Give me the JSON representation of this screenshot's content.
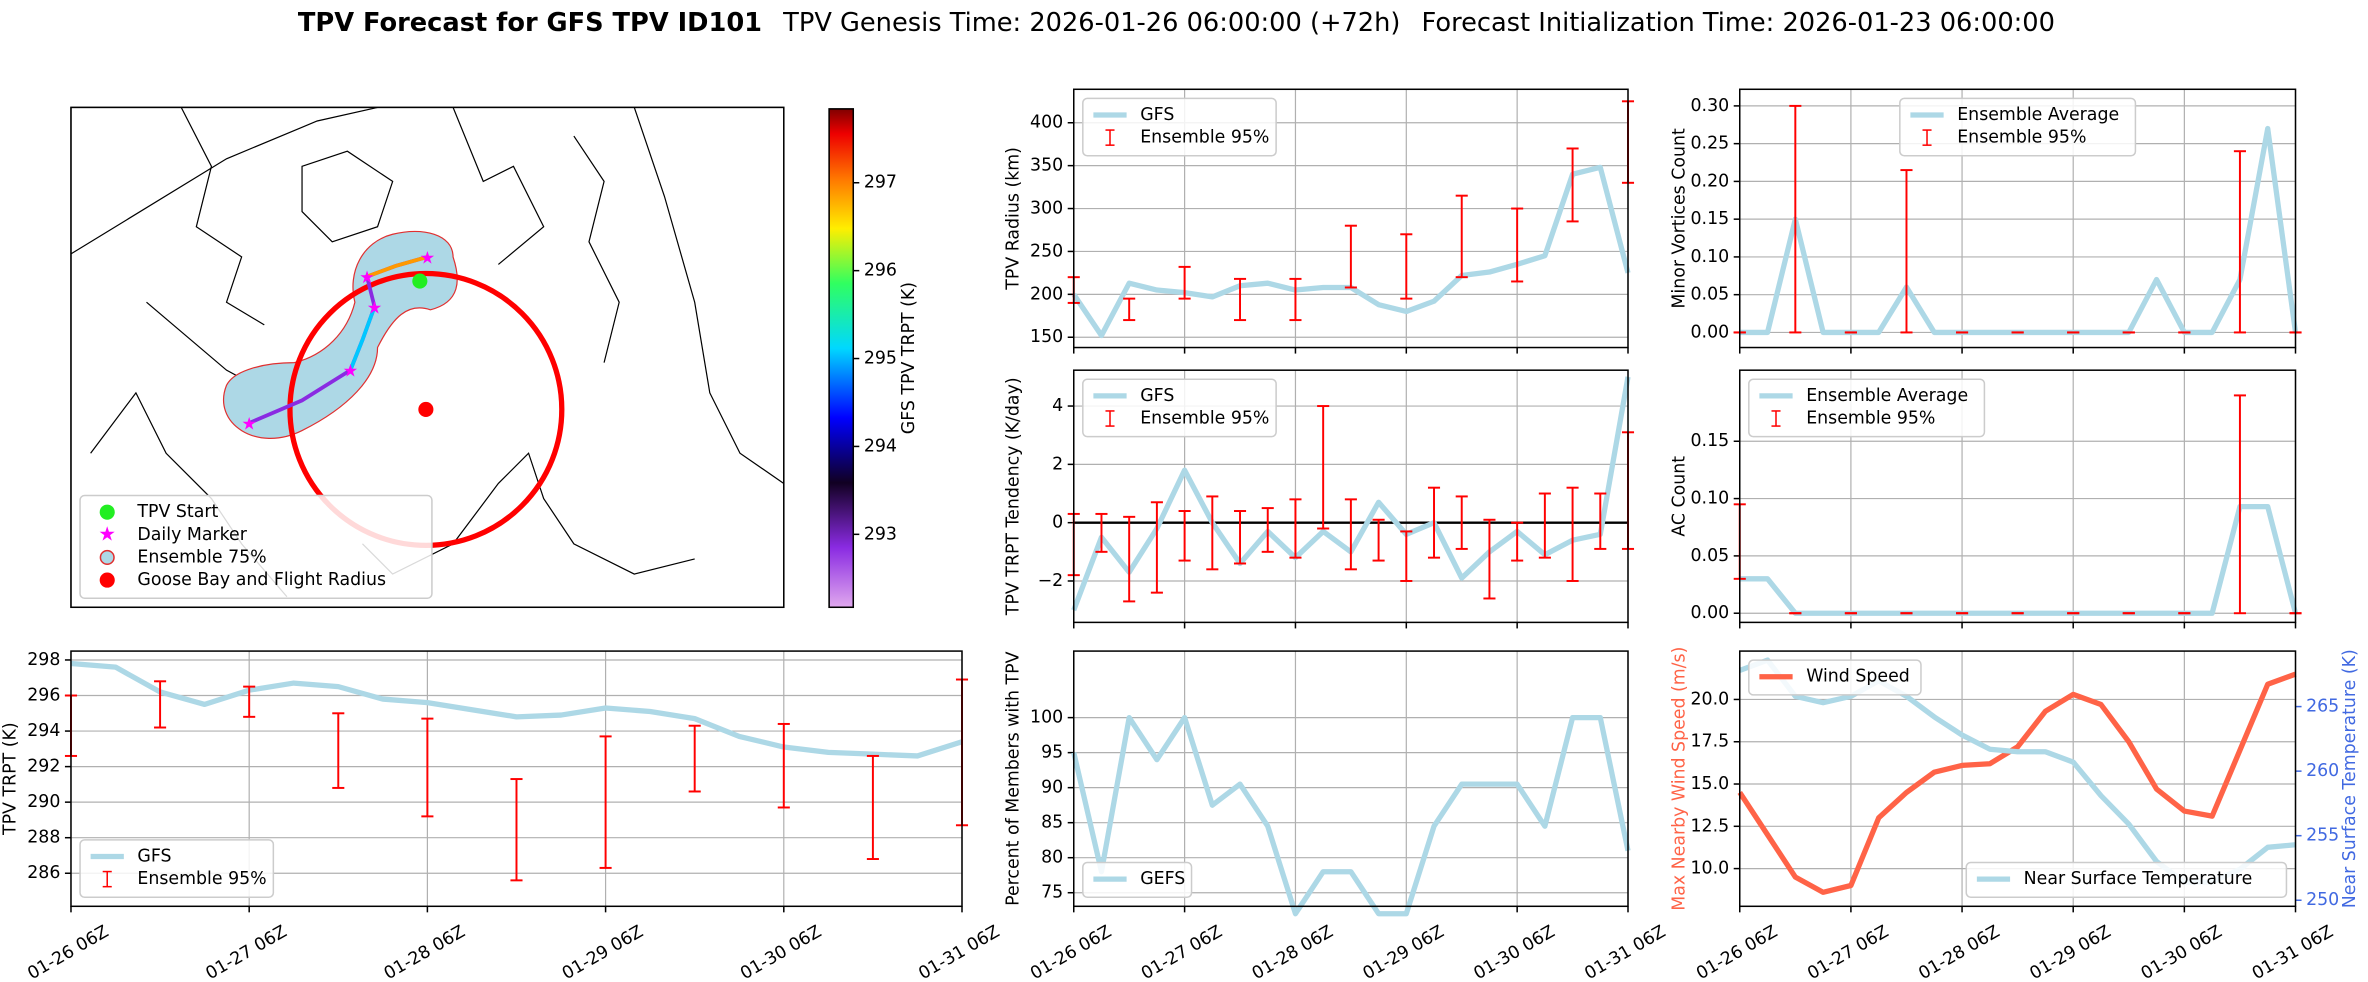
{
  "figure_title": [
    "TPV Forecast for GFS TPV ID101",
    "TPV Genesis Time: 2026-01-26 06:00:00 (+72h)",
    "Forecast Initialization Time: 2026-01-23 06:00:00"
  ],
  "chart_data": [
    {
      "type": "map",
      "colorbar_label": "GFS TPV TRPT (K)",
      "clim": [
        292.17,
        297.84
      ],
      "cticks": [
        293,
        294,
        295,
        296,
        297
      ],
      "legend": "lower left",
      "legend_entries": [
        "TPV Start",
        "Daily Marker",
        "Ensemble 75%",
        "Goose Bay and Flight Radius"
      ]
    },
    {
      "type": "line",
      "ylabel": "TPV Radius (km)",
      "ylim": [
        138,
        439
      ],
      "yticks": [
        150,
        200,
        250,
        300,
        350,
        400
      ],
      "grid": true,
      "legend": "upper left",
      "series": [
        {
          "name": "GFS",
          "color": "#add8e6",
          "values": [
            200,
            152,
            213,
            205,
            202,
            197,
            210,
            213,
            205,
            208,
            208,
            188,
            180,
            192,
            222,
            226,
            235,
            245,
            340,
            348,
            225
          ]
        },
        {
          "name": "Ensemble 95%",
          "color": "#ff0000",
          "kind": "errorbar",
          "low": [
            190,
            null,
            170,
            null,
            195,
            null,
            170,
            null,
            170,
            null,
            208,
            null,
            195,
            null,
            220,
            null,
            215,
            null,
            285,
            null,
            330
          ],
          "high": [
            220,
            null,
            195,
            null,
            232,
            null,
            218,
            null,
            218,
            null,
            280,
            null,
            270,
            null,
            315,
            null,
            300,
            null,
            370,
            null,
            425
          ]
        }
      ]
    },
    {
      "type": "line",
      "ylabel": "Minor Vortices Count",
      "ylim": [
        -0.02,
        0.322
      ],
      "yticks": [
        {
          "value": 0,
          "label": "0.00"
        },
        0.05,
        {
          "value": 0.1,
          "label": "0.10"
        },
        0.15,
        {
          "value": 0.2,
          "label": "0.20"
        },
        0.25,
        {
          "value": 0.3,
          "label": "0.30"
        }
      ],
      "grid": true,
      "legend": "upper center",
      "series": [
        {
          "name": "Ensemble Average",
          "color": "#add8e6",
          "values": [
            0,
            0,
            0.15,
            0,
            0,
            0,
            0.06,
            0,
            0,
            0,
            0,
            0,
            0,
            0,
            0,
            0.07,
            0,
            0,
            0.07,
            0.27,
            0
          ]
        },
        {
          "name": "Ensemble 95%",
          "color": "#ff0000",
          "kind": "errorbar",
          "low": [
            0,
            null,
            0,
            null,
            0,
            null,
            0,
            null,
            0,
            null,
            0,
            null,
            0,
            null,
            0,
            null,
            0,
            null,
            0,
            null,
            0
          ],
          "high": [
            0,
            null,
            0.3,
            null,
            0,
            null,
            0.215,
            null,
            0,
            null,
            0,
            null,
            0,
            null,
            0,
            null,
            0,
            null,
            0.24,
            null,
            0
          ]
        }
      ]
    },
    {
      "type": "line",
      "ylabel": "TPV TRPT Tendency (K/day)",
      "ylim": [
        -3.42,
        5.23
      ],
      "yticks": [
        {
          "value": -2,
          "label": "−2"
        },
        0,
        2,
        4
      ],
      "grid": true,
      "hline": 0,
      "legend": "upper left",
      "series": [
        {
          "name": "GFS",
          "color": "#add8e6",
          "values": [
            -3.0,
            -0.5,
            -1.7,
            -0.2,
            1.8,
            0,
            -1.4,
            -0.3,
            -1.2,
            -0.3,
            -1.0,
            0.7,
            -0.4,
            0,
            -1.9,
            -1.0,
            -0.3,
            -1.1,
            -0.6,
            -0.4,
            5.0
          ]
        },
        {
          "name": "Ensemble 95%",
          "color": "#ff0000",
          "kind": "errorbar",
          "low": [
            -1.8,
            -1.0,
            -2.7,
            -2.4,
            -1.3,
            -1.6,
            -1.4,
            -1.0,
            -1.2,
            -0.2,
            -1.6,
            -1.3,
            -2.0,
            -1.2,
            -0.9,
            -2.6,
            -1.3,
            -1.2,
            -2.0,
            -0.9,
            -0.9
          ],
          "high": [
            0.3,
            0.3,
            0.2,
            0.7,
            0.4,
            0.9,
            0.4,
            0.5,
            0.8,
            4.0,
            0.8,
            0.1,
            -0.3,
            1.2,
            0.9,
            0.1,
            0,
            1.0,
            1.2,
            1.0,
            3.1
          ]
        }
      ]
    },
    {
      "type": "line",
      "ylabel": "AC Count",
      "ylim": [
        -0.008,
        0.212
      ],
      "yticks": [
        {
          "value": 0,
          "label": "0.00"
        },
        0.05,
        {
          "value": 0.1,
          "label": "0.10"
        },
        0.15
      ],
      "grid": true,
      "legend": "upper left",
      "series": [
        {
          "name": "Ensemble Average",
          "color": "#add8e6",
          "values": [
            0.03,
            0.03,
            0,
            0,
            0,
            0,
            0,
            0,
            0,
            0,
            0,
            0,
            0,
            0,
            0,
            0,
            0,
            0,
            0.093,
            0.093,
            0
          ]
        },
        {
          "name": "Ensemble 95%",
          "color": "#ff0000",
          "kind": "errorbar",
          "low": [
            0.03,
            null,
            0,
            null,
            0,
            null,
            0,
            null,
            0,
            null,
            0,
            null,
            0,
            null,
            0,
            null,
            0,
            null,
            0,
            null,
            0
          ],
          "high": [
            0.095,
            null,
            0,
            null,
            0,
            null,
            0,
            null,
            0,
            null,
            0,
            null,
            0,
            null,
            0,
            null,
            0,
            null,
            0.19,
            null,
            0
          ]
        }
      ]
    },
    {
      "type": "line",
      "ylabel": "TPV TRPT (K)",
      "categories": [
        "01-26 06Z",
        null,
        null,
        null,
        "01-27 06Z",
        null,
        null,
        null,
        "01-28 06Z",
        null,
        null,
        null,
        "01-29 06Z",
        null,
        null,
        null,
        "01-30 06Z",
        null,
        null,
        null,
        "01-31 06Z"
      ],
      "ylim": [
        284.14,
        298.5
      ],
      "yticks": [
        286,
        288,
        290,
        292,
        294,
        296,
        298
      ],
      "grid": true,
      "legend": "lower left",
      "series": [
        {
          "name": "GFS",
          "color": "#add8e6",
          "values": [
            297.8,
            297.6,
            296.2,
            295.5,
            296.3,
            296.7,
            296.5,
            295.8,
            295.6,
            295.2,
            294.8,
            294.9,
            295.3,
            295.1,
            294.7,
            293.7,
            293.1,
            292.8,
            292.7,
            292.6,
            293.4
          ]
        },
        {
          "name": "Ensemble 95%",
          "color": "#ff0000",
          "kind": "errorbar",
          "low": [
            292.6,
            null,
            294.2,
            null,
            294.8,
            null,
            290.8,
            null,
            289.2,
            null,
            285.6,
            null,
            286.3,
            null,
            290.6,
            null,
            289.7,
            null,
            286.8,
            null,
            288.7
          ],
          "high": [
            296.0,
            null,
            296.8,
            null,
            296.5,
            null,
            295.0,
            null,
            294.7,
            null,
            291.3,
            null,
            293.7,
            null,
            294.3,
            null,
            294.4,
            null,
            292.6,
            null,
            296.9
          ]
        }
      ]
    },
    {
      "type": "line",
      "ylabel": "Percent of Members with TPV",
      "categories": [
        "01-26 06Z",
        null,
        null,
        null,
        "01-27 06Z",
        null,
        null,
        null,
        "01-28 06Z",
        null,
        null,
        null,
        "01-29 06Z",
        null,
        null,
        null,
        "01-30 06Z",
        null,
        null,
        null,
        "01-31 06Z"
      ],
      "ylim": [
        73.06,
        109.5
      ],
      "yticks": [
        75,
        80,
        85,
        90,
        95,
        100
      ],
      "grid": true,
      "legend": "lower left",
      "series": [
        {
          "name": "GEFS",
          "color": "#add8e6",
          "values": [
            95,
            78,
            100,
            94,
            100,
            87.5,
            90.5,
            84.5,
            72,
            78,
            78,
            72,
            72,
            84.5,
            90.5,
            90.5,
            90.5,
            84.5,
            100,
            100,
            81
          ]
        }
      ]
    },
    {
      "type": "line",
      "ylabel": "Max Nearby Wind Speed (m/s)",
      "ylabel_color": "#ff6347",
      "y2label": "Near Surface Temperature (K)",
      "y2label_color": "#4169e1",
      "categories": [
        "01-26 06Z",
        null,
        null,
        null,
        "01-27 06Z",
        null,
        null,
        null,
        "01-28 06Z",
        null,
        null,
        null,
        "01-29 06Z",
        null,
        null,
        null,
        "01-30 06Z",
        null,
        null,
        null,
        "01-31 06Z"
      ],
      "ylim": [
        7.77,
        22.86
      ],
      "yticks": [
        {
          "value": 10,
          "label": "10.0"
        },
        12.5,
        {
          "value": 15,
          "label": "15.0"
        },
        17.5,
        {
          "value": 20,
          "label": "20.0"
        }
      ],
      "y2lim": [
        249.53,
        269.3
      ],
      "y2ticks": [
        250,
        255,
        260,
        265
      ],
      "grid": true,
      "series": [
        {
          "name": "Wind Speed",
          "color": "#ff6347",
          "legend": "upper left",
          "values": [
            14.5,
            12.0,
            9.5,
            8.6,
            9.0,
            13.0,
            14.5,
            15.7,
            16.1,
            16.2,
            17.2,
            19.3,
            20.3,
            19.7,
            17.5,
            14.7,
            13.4,
            13.1,
            17.0,
            20.9,
            21.5
          ]
        },
        {
          "name": "Near Surface Temperature",
          "color": "#add8e6",
          "axis": "y2",
          "legend": "lower right",
          "values": [
            267.8,
            268.6,
            265.8,
            265.3,
            265.8,
            267.0,
            265.8,
            264.2,
            262.8,
            261.7,
            261.5,
            261.5,
            260.7,
            258.1,
            255.9,
            253.0,
            251.4,
            251.4,
            252.4,
            254.1,
            254.3
          ]
        }
      ]
    }
  ]
}
